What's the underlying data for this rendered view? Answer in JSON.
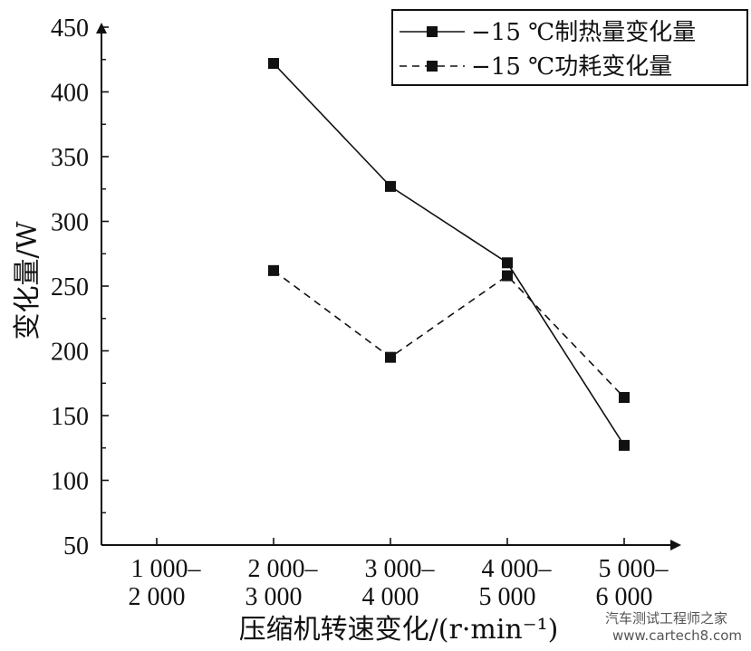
{
  "chart_data": {
    "type": "line",
    "title": "",
    "xlabel": "压缩机转速变化/(r·min⁻¹)",
    "ylabel": "变化量/W",
    "ylim": [
      50,
      450
    ],
    "yticks": [
      50,
      100,
      150,
      200,
      250,
      300,
      350,
      400,
      450
    ],
    "categories": [
      [
        "1 000–",
        "2 000"
      ],
      [
        "2 000–",
        "3 000"
      ],
      [
        "3 000–",
        "4 000"
      ],
      [
        "4 000–",
        "5 000"
      ],
      [
        "5 000–",
        "6 000"
      ]
    ],
    "series": [
      {
        "name": "−15 ℃制热量变化量",
        "style": "solid",
        "values": [
          null,
          422,
          327,
          268,
          127
        ]
      },
      {
        "name": "−15 ℃功耗变化量",
        "style": "dashed",
        "values": [
          null,
          262,
          195,
          258,
          164
        ]
      }
    ],
    "grid": false,
    "legend": "top-right"
  },
  "watermark": {
    "text": "www.cartech8.com",
    "brand": "汽车测试工程师之家"
  },
  "colors": {
    "ink": "#111111",
    "background": "#ffffff"
  }
}
